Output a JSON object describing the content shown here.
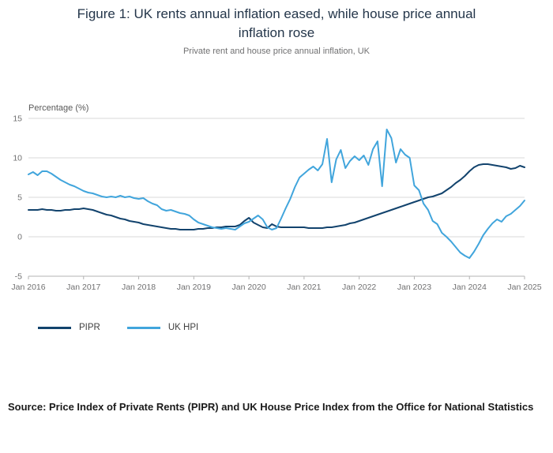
{
  "figure": {
    "title": "Figure 1: UK rents annual inflation eased, while house price annual inflation rose",
    "subtitle": "Private rent and house price annual inflation, UK",
    "source": "Source: Price Index of Private Rents (PIPR) and UK House Price Index from the Office for National Statistics"
  },
  "chart_data": {
    "type": "line",
    "title": "Figure 1: UK rents annual inflation eased, while house price annual inflation rose",
    "subtitle": "Private rent and house price annual inflation, UK",
    "ylabel": "Percentage (%)",
    "xlabel": "",
    "ylim": [
      -5,
      15
    ],
    "yticks": [
      15,
      10,
      5,
      0,
      -5
    ],
    "grid": "horizontal",
    "legend_position": "bottom-left",
    "x_frequency": "monthly",
    "x_start": "Jan 2016",
    "x_end": "Jan 2025",
    "xticks": [
      "Jan 2016",
      "Jan 2017",
      "Jan 2018",
      "Jan 2019",
      "Jan 2020",
      "Jan 2021",
      "Jan 2022",
      "Jan 2023",
      "Jan 2024",
      "Jan 2025"
    ],
    "series": [
      {
        "name": "PIPR",
        "color": "#12436D",
        "values": [
          3.4,
          3.4,
          3.4,
          3.5,
          3.4,
          3.4,
          3.3,
          3.3,
          3.4,
          3.4,
          3.5,
          3.5,
          3.6,
          3.5,
          3.4,
          3.2,
          3.0,
          2.8,
          2.7,
          2.5,
          2.3,
          2.2,
          2.0,
          1.9,
          1.8,
          1.6,
          1.5,
          1.4,
          1.3,
          1.2,
          1.1,
          1.0,
          1.0,
          0.9,
          0.9,
          0.9,
          0.9,
          1.0,
          1.0,
          1.1,
          1.1,
          1.2,
          1.2,
          1.3,
          1.3,
          1.3,
          1.5,
          2.0,
          2.4,
          1.8,
          1.5,
          1.2,
          1.1,
          1.6,
          1.3,
          1.2,
          1.2,
          1.2,
          1.2,
          1.2,
          1.2,
          1.1,
          1.1,
          1.1,
          1.1,
          1.2,
          1.2,
          1.3,
          1.4,
          1.5,
          1.7,
          1.8,
          2.0,
          2.2,
          2.4,
          2.6,
          2.8,
          3.0,
          3.2,
          3.4,
          3.6,
          3.8,
          4.0,
          4.2,
          4.4,
          4.6,
          4.8,
          5.0,
          5.1,
          5.3,
          5.5,
          5.9,
          6.3,
          6.8,
          7.2,
          7.7,
          8.3,
          8.8,
          9.1,
          9.2,
          9.2,
          9.1,
          9.0,
          8.9,
          8.8,
          8.6,
          8.7,
          9.0,
          8.8
        ]
      },
      {
        "name": "UK HPI",
        "color": "#41A5DC",
        "values": [
          7.9,
          8.2,
          7.8,
          8.3,
          8.3,
          8.0,
          7.6,
          7.2,
          6.9,
          6.6,
          6.4,
          6.1,
          5.8,
          5.6,
          5.5,
          5.3,
          5.1,
          5.0,
          5.1,
          5.0,
          5.2,
          5.0,
          5.1,
          4.9,
          4.8,
          4.9,
          4.5,
          4.2,
          4.0,
          3.5,
          3.3,
          3.4,
          3.2,
          3.0,
          2.9,
          2.7,
          2.2,
          1.8,
          1.6,
          1.4,
          1.2,
          1.1,
          1.0,
          1.1,
          1.0,
          0.9,
          1.3,
          1.7,
          1.9,
          2.3,
          2.7,
          2.2,
          1.2,
          0.9,
          1.1,
          2.3,
          3.6,
          4.8,
          6.3,
          7.5,
          8.0,
          8.5,
          8.9,
          8.4,
          9.2,
          12.4,
          6.9,
          9.8,
          11.0,
          8.7,
          9.6,
          10.2,
          9.7,
          10.3,
          9.1,
          11.1,
          12.1,
          6.4,
          13.6,
          12.5,
          9.4,
          11.1,
          10.4,
          10.0,
          6.5,
          5.9,
          4.2,
          3.4,
          2.0,
          1.6,
          0.5,
          0.0,
          -0.6,
          -1.3,
          -2.0,
          -2.4,
          -2.7,
          -1.9,
          -0.9,
          0.2,
          1.0,
          1.7,
          2.2,
          1.9,
          2.6,
          2.9,
          3.4,
          3.9,
          4.6
        ]
      }
    ]
  }
}
